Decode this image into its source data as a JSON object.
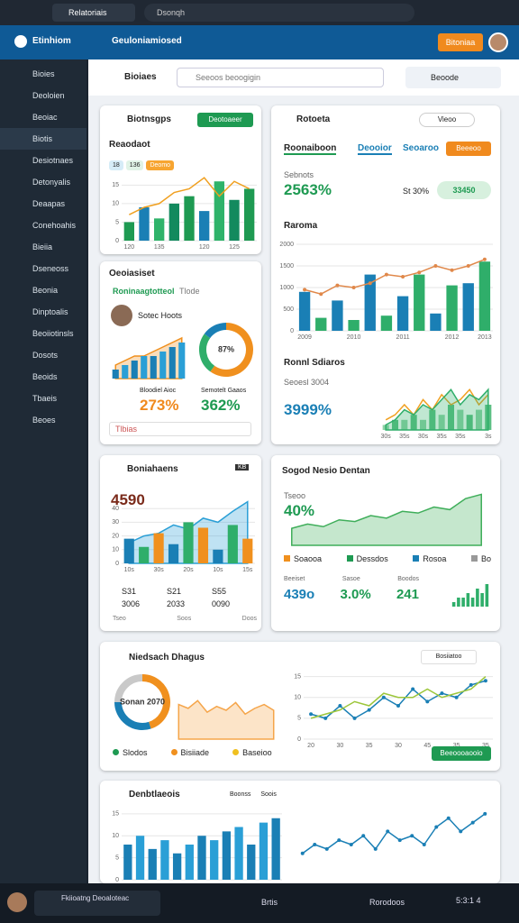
{
  "browser": {
    "tab": "Relatoriais",
    "address": "Dsonqh"
  },
  "header": {
    "brand": "Etinhiom",
    "section": "Geuloniamiosed",
    "button": "Bitoniaa"
  },
  "sidebar": [
    "Bioies",
    "Deoloien",
    "Beoiac",
    "Biotis",
    "Desiotnaes",
    "Detonyalis",
    "Deaapas",
    "Conehoahis",
    "Bieiia",
    "Dseneoss",
    "Beonia",
    "Dinptoalis",
    "Beoiiotinsls",
    "Dosots",
    "Beoids",
    "Tbaeis",
    "Beoes"
  ],
  "topbar": {
    "title": "Bioiaes",
    "search": "Seeoos beoogigin",
    "user": "Beoode"
  },
  "cards": [
    {
      "title": "Biotnsgps",
      "button": "Deotoaeer",
      "subtitle": "Reaodaot",
      "chips": [
        "18",
        "136",
        "Deomo"
      ],
      "chart": {
        "type": "bar",
        "ylim": [
          0,
          18
        ],
        "yticks": [
          0,
          5,
          10,
          15
        ],
        "categories": [
          "120",
          null,
          "135",
          null,
          null,
          "120",
          null,
          "125",
          null
        ],
        "series": [
          {
            "type": "bar",
            "colors": [
              "#1e9a52",
              "#1a7fb5",
              "#2fb36a",
              "#138a5e"
            ],
            "values": [
              5,
              9,
              6,
              10,
              12,
              8,
              16,
              11,
              14
            ]
          },
          {
            "type": "line",
            "color": "#f0a020",
            "values": [
              7,
              9,
              10,
              13,
              14,
              17,
              12,
              16,
              14
            ]
          }
        ]
      }
    },
    {
      "title": "Rotoeta",
      "toggle": "Vieoo",
      "tabs": [
        "Roonaiboon",
        "Deooior",
        "Seoaroo"
      ],
      "button": "Beeeoo",
      "stat_label": "Sebnots",
      "stat": "2563%",
      "small": "St 30%",
      "pill": "33450",
      "section": "Raroma",
      "chart": {
        "type": "bar",
        "ylim": [
          0,
          2000
        ],
        "yticks": [
          0,
          500,
          1000,
          1500,
          2000
        ],
        "categories": [
          "2009",
          null,
          null,
          "2010",
          null,
          null,
          "2011",
          null,
          null,
          "2012",
          null,
          "2013"
        ],
        "series": [
          {
            "type": "bar",
            "colors": [
              "#1a7fb5",
              "#2fae6a"
            ],
            "values": [
              900,
              300,
              700,
              250,
              1300,
              350,
              800,
              1300,
              400,
              1050,
              1100,
              1600
            ]
          },
          {
            "type": "line",
            "color": "#e0884a",
            "markers": true,
            "values": [
              950,
              850,
              1050,
              1000,
              1100,
              1300,
              1250,
              1350,
              1500,
              1400,
              1500,
              1650
            ]
          }
        ]
      },
      "section2": "Ronnl Sdiaros",
      "label2": "Seoesl 3004",
      "stat2": "3999%",
      "chart2": {
        "type": "area",
        "ylim": [
          0,
          10
        ],
        "categories": [
          "30s",
          null,
          "35s",
          null,
          "30s",
          null,
          "35s",
          null,
          "35s",
          null,
          null,
          "3s"
        ],
        "series": [
          {
            "type": "bar",
            "colors": [
              "#8fd3a6",
              "#5bbf83"
            ],
            "values": [
              1,
              2,
              2,
              3,
              2,
              4,
              3,
              5,
              4,
              3,
              4,
              5
            ]
          },
          {
            "type": "line",
            "color": "#f0a020",
            "values": [
              2,
              3,
              5,
              3,
              6,
              4,
              7,
              5,
              6,
              8,
              5,
              7
            ]
          },
          {
            "type": "area",
            "color": "#2fae6a",
            "values": [
              1,
              2,
              4,
              3,
              5,
              4,
              6,
              8,
              5,
              7,
              6,
              8
            ]
          }
        ]
      }
    },
    {
      "title": "Oeoiasiset",
      "chip": "Tlode",
      "status": "Roninaagtotteol",
      "person": "Sotec Hoots",
      "stat_a_label": "Bloodiel Aioc",
      "stat_a": "273%",
      "stat_b_label": "Semotelt Gaaos",
      "stat_b": "362%",
      "footer": "Tlbias",
      "chart": {
        "type": "area",
        "ylim": [
          0,
          10
        ],
        "series": [
          {
            "type": "area",
            "color": "#f0901e",
            "values": [
              3,
              4,
              5,
              5,
              6,
              7,
              8,
              9
            ]
          },
          {
            "type": "bar",
            "colors": [
              "#1a7fb5",
              "#2a9fd6"
            ],
            "values": [
              2,
              3,
              4,
              5,
              5,
              6,
              7,
              8
            ]
          }
        ]
      },
      "donut": {
        "type": "donut",
        "center": "87%",
        "series": [
          {
            "colors": [
              "#f0901e",
              "#2fae6a",
              "#1a7fb5"
            ],
            "values": [
              60,
              25,
              15
            ]
          }
        ]
      }
    },
    {
      "title": "Boniahaens",
      "badge": "KB",
      "stat": "4590",
      "chart": {
        "type": "bar",
        "ylim": [
          0,
          50
        ],
        "yticks": [
          0,
          10,
          20,
          30,
          40
        ],
        "categories": [
          "10s",
          null,
          "30s",
          null,
          "20s",
          null,
          "10s",
          null,
          "15s"
        ],
        "series": [
          {
            "type": "area",
            "color": "#2a9fd6",
            "values": [
              15,
              20,
              22,
              28,
              25,
              33,
              30,
              38,
              45
            ]
          },
          {
            "type": "bar",
            "colors": [
              "#1a7fb5",
              "#2fae6a",
              "#f0901e"
            ],
            "values": [
              18,
              12,
              22,
              14,
              30,
              26,
              10,
              28,
              18
            ]
          }
        ]
      },
      "legend": [
        "S31",
        "S21",
        "S55",
        "3006",
        "2033",
        "0090"
      ],
      "foot": [
        "Tseo",
        "Soos",
        "Doos"
      ]
    },
    {
      "title": "Sogod Nesio Dentan",
      "label": "Tseoo",
      "stat": "40%",
      "chart": {
        "type": "area",
        "ylim": [
          0,
          70
        ],
        "series": [
          {
            "type": "area",
            "color": "#3fae5a",
            "values": [
              20,
              25,
              22,
              30,
              28,
              35,
              32,
              40,
              38,
              45,
              42,
              55,
              60
            ]
          }
        ]
      },
      "legend": [
        {
          "name": "Soaooa",
          "color": "#f0901e"
        },
        {
          "name": "Dessdos",
          "color": "#1e9a52"
        },
        {
          "name": "Rosoa",
          "color": "#1a7fb5"
        },
        {
          "name": "Bo",
          "color": "#999999"
        }
      ],
      "stats": [
        "439o",
        "3.0%",
        "241"
      ],
      "stat_labels": [
        "Beeiset",
        "Sasoe",
        "Boodos"
      ],
      "mini": {
        "type": "bar",
        "ylim": [
          0,
          6
        ],
        "series": [
          {
            "type": "bar",
            "colors": [
              "#2fae6a"
            ],
            "values": [
              1,
              2,
              2,
              3,
              2,
              4,
              3,
              5
            ]
          }
        ]
      }
    },
    {
      "title": "Niedsach Dhagus",
      "chip": "Bosiiatoo",
      "donut": {
        "type": "donut",
        "center": "Sonan 2070",
        "series": [
          {
            "colors": [
              "#f0901e",
              "#1a7fb5",
              "#c9c9c9"
            ],
            "values": [
              45,
              30,
              25
            ]
          }
        ]
      },
      "chart": {
        "type": "area",
        "ylim": [
          0,
          30
        ],
        "series": [
          {
            "type": "area",
            "color": "#f5a54a",
            "values": [
              18,
              16,
              20,
              14,
              17,
              15,
              19,
              13,
              16,
              18,
              15
            ]
          }
        ]
      },
      "chart2": {
        "type": "line",
        "ylim": [
          0,
          16
        ],
        "yticks": [
          0,
          5,
          10,
          15
        ],
        "categories": [
          "20",
          null,
          "30",
          null,
          "35",
          null,
          "30",
          null,
          "45",
          null,
          "35",
          null,
          "35"
        ],
        "series": [
          {
            "type": "line",
            "color": "#1a7fb5",
            "markers": true,
            "values": [
              6,
              5,
              8,
              5,
              7,
              10,
              8,
              12,
              9,
              11,
              10,
              13,
              14
            ]
          },
          {
            "type": "line",
            "color": "#9cc63a",
            "values": [
              5,
              6,
              7,
              9,
              8,
              11,
              10,
              10,
              12,
              10,
              11,
              12,
              15
            ]
          }
        ]
      },
      "legend": [
        {
          "name": "Slodos",
          "color": "#1e9a52"
        },
        {
          "name": "Bisiiade",
          "color": "#f0901e"
        },
        {
          "name": "Baseioo",
          "color": "#f0c020"
        }
      ],
      "button": "Beeoooaooio"
    },
    {
      "title": "Denbtlaeois",
      "chips": [
        "Boonss",
        "Soois"
      ],
      "chart": {
        "type": "bar",
        "ylim": [
          0,
          16
        ],
        "yticks": [
          0,
          5,
          10,
          15
        ],
        "series": [
          {
            "type": "bar",
            "colors": [
              "#1a7fb5",
              "#2a9fd6"
            ],
            "values": [
              8,
              10,
              7,
              9,
              6,
              8,
              10,
              9,
              11,
              12,
              8,
              13,
              14
            ]
          }
        ]
      },
      "chart2": {
        "type": "line",
        "ylim": [
          0,
          16
        ],
        "series": [
          {
            "type": "line",
            "color": "#1a7fb5",
            "markers": true,
            "values": [
              6,
              8,
              7,
              9,
              8,
              10,
              7,
              11,
              9,
              10,
              8,
              12,
              14,
              11,
              13,
              15
            ]
          }
        ]
      }
    }
  ],
  "taskbar": {
    "app": "Fkiioatng Deoaloteac",
    "item": "Brtis",
    "item2": "Rorodoos",
    "clock": "5:3:1 4"
  }
}
